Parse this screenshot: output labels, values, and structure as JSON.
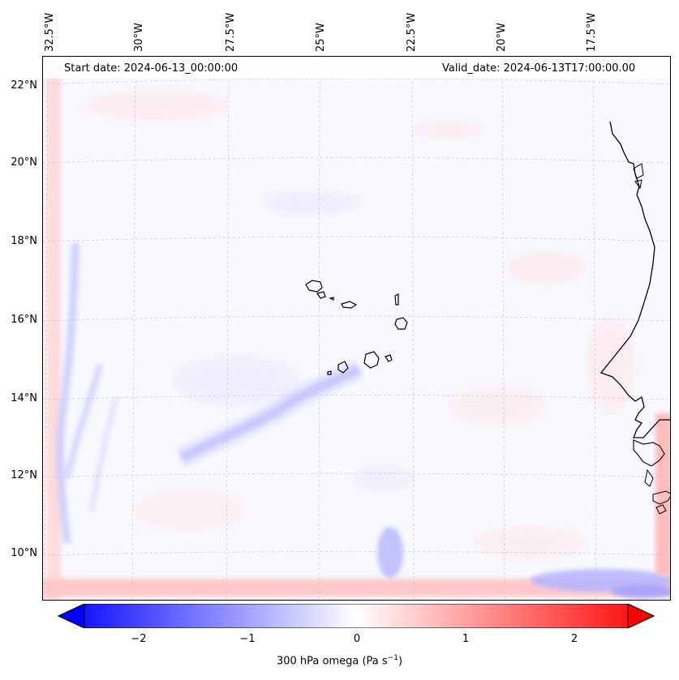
{
  "header": {
    "start_date": "Start date: 2024-06-13_00:00:00",
    "valid_date": "Valid_date: 2024-06-13T17:00:00.00"
  },
  "axes": {
    "lon_labels": [
      "32.5°W",
      "30°W",
      "27.5°W",
      "25°W",
      "22.5°W",
      "20°W",
      "17.5°W"
    ],
    "lat_labels": [
      "22°N",
      "20°N",
      "18°N",
      "16°N",
      "14°N",
      "12°N",
      "10°N"
    ]
  },
  "colorbar": {
    "ticks": [
      "−2",
      "−1",
      "0",
      "1",
      "2"
    ],
    "label": "300 hPa omega (Pa s",
    "label_sup": "−1",
    "label_end": ")",
    "range": [
      -2.6,
      2.6
    ],
    "cmap": "bwr"
  },
  "colors": {
    "low": "#0000ff",
    "mid": "#ffffff",
    "high": "#ff0000",
    "coast": "#000000"
  }
}
